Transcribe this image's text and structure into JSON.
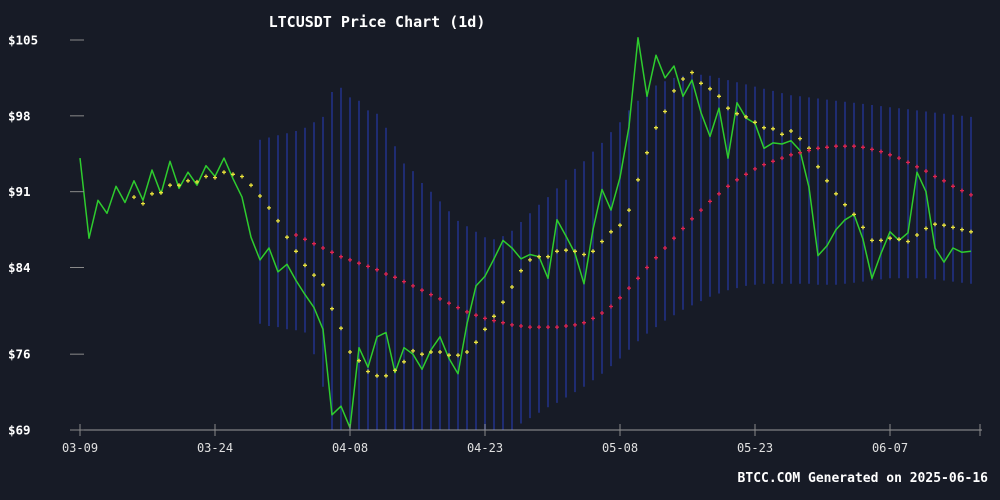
{
  "title": "LTCUSDT Price Chart (1d)",
  "footer": "BTCC.COM Generated on 2025-06-16",
  "colors": {
    "background": "#171b26",
    "price_green": "#2ecc2e",
    "ma7_yellow": "#e9e23a",
    "ma25_red": "#e0234a",
    "band_blue": "#1f2c72",
    "axis_gray": "#9a9a9a",
    "tick_gray": "#8a8a8a",
    "label_white": "#ffffff",
    "xlabel_gray": "#e0e0e0"
  },
  "chart_data": {
    "type": "line",
    "title": "LTCUSDT Price Chart (1d)",
    "xlabel": "",
    "ylabel": "",
    "grid": false,
    "legend": "none",
    "ylim": [
      69,
      105
    ],
    "x_axis": {
      "tick_labels": [
        "03-09",
        "03-24",
        "04-08",
        "04-23",
        "05-08",
        "05-23",
        "06-07"
      ],
      "tick_days": [
        0,
        15,
        30,
        45,
        60,
        75,
        90
      ],
      "edge_tick_day": 100,
      "start_date": "03-09",
      "interval": "1d"
    },
    "y_axis": {
      "tick_labels": [
        "$105",
        "$98",
        "$91",
        "$84",
        "$76",
        "$69"
      ],
      "tick_values": [
        105,
        98,
        91,
        84,
        76,
        69
      ]
    },
    "series": [
      {
        "name": "close-price",
        "type": "line",
        "color_key": "price_green",
        "start_day": 0,
        "values": [
          94.1,
          86.7,
          90.2,
          89.0,
          91.5,
          90.0,
          92.0,
          90.2,
          93.0,
          90.8,
          93.8,
          91.3,
          92.8,
          91.6,
          93.4,
          92.4,
          94.1,
          92.2,
          90.5,
          86.8,
          84.7,
          85.8,
          83.6,
          84.3,
          82.8,
          81.5,
          80.3,
          78.3,
          70.4,
          71.2,
          69.2,
          76.6,
          74.8,
          77.6,
          78.0,
          74.3,
          76.6,
          76.0,
          74.6,
          76.4,
          77.6,
          75.6,
          74.2,
          78.8,
          82.3,
          83.2,
          84.8,
          86.5,
          85.8,
          84.8,
          85.2,
          85.0,
          83.0,
          88.4,
          86.9,
          85.3,
          82.5,
          87.5,
          91.2,
          89.3,
          92.3,
          97.0,
          105.2,
          99.8,
          103.6,
          101.5,
          102.6,
          99.8,
          101.3,
          98.3,
          96.1,
          98.7,
          94.1,
          99.2,
          97.8,
          97.3,
          95.0,
          95.5,
          95.4,
          95.7,
          94.8,
          91.4,
          85.1,
          86.0,
          87.5,
          88.4,
          88.9,
          86.6,
          83.0,
          85.3,
          87.3,
          86.5,
          87.2,
          92.8,
          91.0,
          85.8,
          84.5,
          85.8,
          85.4,
          85.5
        ]
      },
      {
        "name": "ma7",
        "type": "plus-markers",
        "color_key": "ma7_yellow",
        "start_day": 6,
        "values": [
          90.5,
          89.9,
          90.8,
          90.9,
          91.6,
          91.6,
          92.0,
          91.9,
          92.4,
          92.3,
          92.8,
          92.6,
          92.4,
          91.6,
          90.6,
          89.5,
          88.3,
          86.8,
          85.5,
          84.2,
          83.3,
          82.4,
          80.2,
          78.4,
          76.2,
          75.4,
          74.4,
          74.0,
          74.0,
          74.5,
          75.3,
          76.3,
          76.0,
          76.2,
          76.2,
          75.9,
          75.9,
          76.2,
          77.1,
          78.3,
          79.5,
          80.8,
          82.2,
          83.7,
          84.7,
          85.0,
          85.0,
          85.5,
          85.6,
          85.5,
          85.2,
          85.5,
          86.4,
          87.3,
          87.9,
          89.3,
          92.1,
          94.6,
          96.9,
          98.4,
          100.3,
          101.4,
          102.0,
          101.0,
          100.5,
          99.8,
          98.7,
          98.2,
          97.9,
          97.4,
          96.9,
          96.8,
          96.3,
          96.6,
          95.9,
          95.0,
          93.3,
          92.0,
          90.8,
          89.8,
          88.9,
          87.7,
          86.5,
          86.5,
          86.7,
          86.6,
          86.4,
          87.0,
          87.6,
          88.0,
          87.9,
          87.7,
          87.5,
          87.3
        ]
      },
      {
        "name": "ma25",
        "type": "plus-markers",
        "color_key": "ma25_red",
        "start_day": 24,
        "values": [
          87.0,
          86.6,
          86.2,
          85.8,
          85.4,
          85.0,
          84.7,
          84.4,
          84.1,
          83.8,
          83.4,
          83.1,
          82.7,
          82.3,
          81.9,
          81.5,
          81.1,
          80.7,
          80.3,
          79.9,
          79.6,
          79.3,
          79.1,
          78.9,
          78.7,
          78.6,
          78.5,
          78.5,
          78.5,
          78.5,
          78.6,
          78.7,
          78.9,
          79.3,
          79.8,
          80.4,
          81.2,
          82.1,
          83.0,
          84.0,
          84.9,
          85.8,
          86.7,
          87.6,
          88.5,
          89.3,
          90.1,
          90.8,
          91.5,
          92.1,
          92.6,
          93.1,
          93.5,
          93.8,
          94.1,
          94.4,
          94.6,
          94.8,
          95.0,
          95.1,
          95.2,
          95.2,
          95.2,
          95.1,
          94.9,
          94.7,
          94.4,
          94.1,
          93.7,
          93.3,
          92.9,
          92.4,
          92.0,
          91.5,
          91.1,
          90.7
        ]
      },
      {
        "name": "volatility-band",
        "type": "vertical-range-bars",
        "color_key": "band_blue",
        "start_day": 20,
        "top": [
          95.8,
          96.0,
          96.2,
          96.4,
          96.6,
          96.9,
          97.4,
          97.9,
          100.2,
          100.6,
          99.7,
          99.4,
          98.5,
          98.2,
          96.9,
          95.2,
          93.6,
          92.9,
          91.8,
          91.0,
          90.1,
          89.2,
          88.3,
          87.8,
          87.3,
          86.8,
          86.6,
          86.9,
          87.4,
          88.2,
          89.0,
          89.8,
          90.5,
          91.3,
          92.1,
          93.1,
          93.8,
          94.7,
          95.5,
          96.5,
          97.4,
          98.5,
          99.4,
          100.2,
          100.8,
          101.2,
          101.5,
          101.7,
          101.8,
          101.8,
          101.7,
          101.5,
          101.3,
          101.1,
          100.9,
          100.7,
          100.5,
          100.3,
          100.1,
          99.9,
          99.8,
          99.7,
          99.6,
          99.5,
          99.4,
          99.3,
          99.2,
          99.1,
          99.0,
          98.9,
          98.8,
          98.7,
          98.6,
          98.5,
          98.4,
          98.3,
          98.2,
          98.1,
          98.0,
          97.9
        ],
        "bottom": [
          78.8,
          78.6,
          78.5,
          78.3,
          78.2,
          78.0,
          76.0,
          73.0,
          69.0,
          69.0,
          69.0,
          69.0,
          69.0,
          69.0,
          69.0,
          69.0,
          69.0,
          69.0,
          69.0,
          69.0,
          69.0,
          69.0,
          69.0,
          69.0,
          69.0,
          69.0,
          69.0,
          69.0,
          69.0,
          69.6,
          70.1,
          70.6,
          71.1,
          71.5,
          72.0,
          72.5,
          73.0,
          73.6,
          74.2,
          74.9,
          75.6,
          76.4,
          77.2,
          77.9,
          78.5,
          79.1,
          79.6,
          80.1,
          80.5,
          80.9,
          81.3,
          81.6,
          81.9,
          82.1,
          82.3,
          82.4,
          82.5,
          82.5,
          82.5,
          82.5,
          82.5,
          82.5,
          82.4,
          82.4,
          82.4,
          82.5,
          82.6,
          82.7,
          82.8,
          82.9,
          83.0,
          83.0,
          83.0,
          83.0,
          83.0,
          82.9,
          82.8,
          82.7,
          82.6,
          82.5
        ]
      }
    ]
  }
}
